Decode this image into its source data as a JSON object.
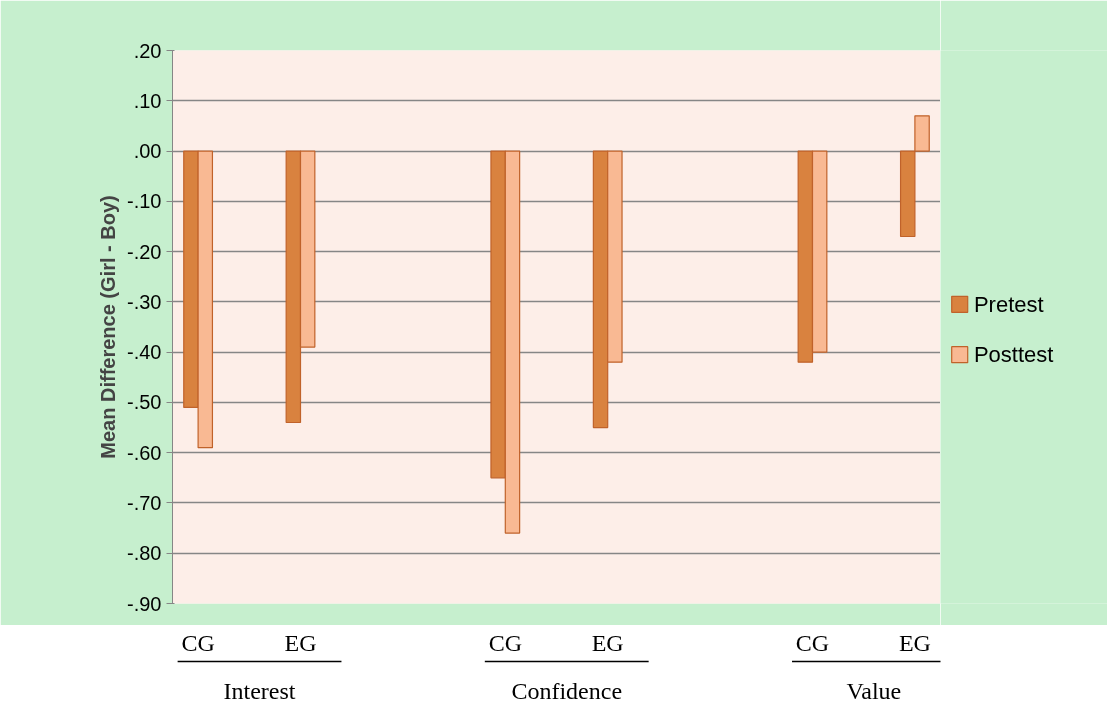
{
  "chart_data": {
    "type": "bar",
    "ylabel": "Mean Difference (Girl - Boy)",
    "categories": [
      "CG",
      "EG",
      null,
      "CG",
      "EG",
      null,
      "CG",
      "EG"
    ],
    "series": [
      {
        "name": "Pretest",
        "color": "#d9823f",
        "values": [
          -0.51,
          -0.54,
          null,
          -0.65,
          -0.55,
          null,
          -0.42,
          -0.17
        ]
      },
      {
        "name": "Posttest",
        "color": "#f9b993",
        "values": [
          -0.59,
          -0.39,
          null,
          -0.76,
          -0.42,
          null,
          -0.4,
          0.07
        ]
      }
    ],
    "annotations": [
      "Interest",
      "Confidence",
      "Value"
    ],
    "ylim": [
      -0.9,
      0.2
    ],
    "yticks": [
      {
        "value": 0.2,
        "label": ".20"
      },
      {
        "value": 0.1,
        "label": ".10"
      },
      {
        "value": 0,
        "label": ".00"
      },
      {
        "value": -0.1,
        "label": "-.10"
      },
      {
        "value": -0.2,
        "label": "-.20"
      },
      {
        "value": -0.3,
        "label": "-.30"
      },
      {
        "value": -0.4,
        "label": "-.40"
      },
      {
        "value": -0.5,
        "label": "-.50"
      },
      {
        "value": -0.6,
        "label": "-.60"
      },
      {
        "value": -0.7,
        "label": "-.70"
      },
      {
        "value": -0.8,
        "label": "-.80"
      },
      {
        "value": -0.9,
        "label": "-.90"
      }
    ],
    "grid": "y",
    "legend": "right"
  }
}
